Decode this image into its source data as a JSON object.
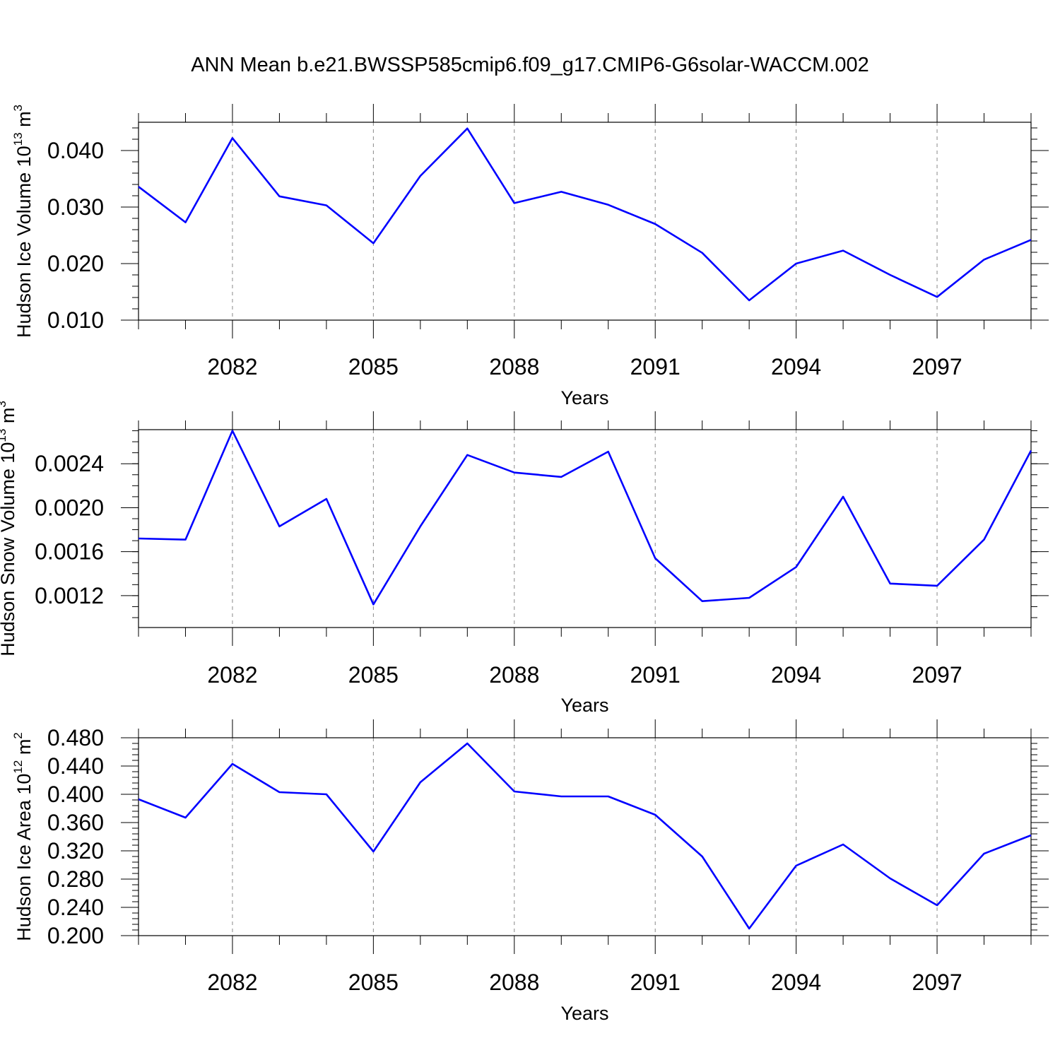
{
  "figure": {
    "title": "ANN Mean b.e21.BWSSP585cmip6.f09_g17.CMIP6-G6solar-WACCM.002"
  },
  "chart_data": [
    {
      "type": "line",
      "title": "",
      "ylabel_main": "Hudson Ice Volume 10",
      "ylabel_exp": "13",
      "ylabel_unit": " m",
      "ylabel_unit_exp": "3",
      "xlabel": "Years",
      "x": [
        2080,
        2081,
        2082,
        2083,
        2084,
        2085,
        2086,
        2087,
        2088,
        2089,
        2090,
        2091,
        2092,
        2093,
        2094,
        2095,
        2096,
        2097,
        2098,
        2099
      ],
      "series": [
        {
          "color": "#0000ff",
          "values": [
            0.0336,
            0.0273,
            0.0422,
            0.0319,
            0.0303,
            0.0236,
            0.0355,
            0.0439,
            0.0307,
            0.0327,
            0.0304,
            0.027,
            0.0219,
            0.0135,
            0.02,
            0.0223,
            0.018,
            0.0141,
            0.0207,
            0.0242
          ]
        }
      ],
      "xlim": [
        2080,
        2099
      ],
      "ylim": [
        0.01,
        0.045
      ],
      "xticks": [
        "2082",
        "2085",
        "2088",
        "2091",
        "2094",
        "2097"
      ],
      "xtick_values": [
        2082,
        2085,
        2088,
        2091,
        2094,
        2097
      ],
      "yticks": [
        "0.010",
        "0.020",
        "0.030",
        "0.040"
      ],
      "ytick_values": [
        0.01,
        0.02,
        0.03,
        0.04
      ],
      "y_minor_step": 0.002,
      "grid": "vertical dashed at major x ticks"
    },
    {
      "type": "line",
      "title": "",
      "ylabel_main": "Hudson Snow Volume 10",
      "ylabel_exp": "13",
      "ylabel_unit": " m",
      "ylabel_unit_exp": "3",
      "xlabel": "Years",
      "x": [
        2080,
        2081,
        2082,
        2083,
        2084,
        2085,
        2086,
        2087,
        2088,
        2089,
        2090,
        2091,
        2092,
        2093,
        2094,
        2095,
        2096,
        2097,
        2098,
        2099
      ],
      "series": [
        {
          "color": "#0000ff",
          "values": [
            0.00172,
            0.00171,
            0.0027,
            0.00183,
            0.00208,
            0.00112,
            0.00183,
            0.00248,
            0.00232,
            0.00228,
            0.00251,
            0.00154,
            0.00115,
            0.00118,
            0.00146,
            0.0021,
            0.00131,
            0.00129,
            0.00171,
            0.00252
          ]
        }
      ],
      "xlim": [
        2080,
        2099
      ],
      "ylim": [
        0.00091,
        0.00271
      ],
      "xticks": [
        "2082",
        "2085",
        "2088",
        "2091",
        "2094",
        "2097"
      ],
      "xtick_values": [
        2082,
        2085,
        2088,
        2091,
        2094,
        2097
      ],
      "yticks": [
        "0.0012",
        "0.0016",
        "0.0020",
        "0.0024"
      ],
      "ytick_values": [
        0.0012,
        0.0016,
        0.002,
        0.0024
      ],
      "y_minor_step": 0.0001,
      "grid": "vertical dashed at major x ticks"
    },
    {
      "type": "line",
      "title": "",
      "ylabel_main": "Hudson Ice Area 10",
      "ylabel_exp": "12",
      "ylabel_unit": " m",
      "ylabel_unit_exp": "2",
      "xlabel": "Years",
      "x": [
        2080,
        2081,
        2082,
        2083,
        2084,
        2085,
        2086,
        2087,
        2088,
        2089,
        2090,
        2091,
        2092,
        2093,
        2094,
        2095,
        2096,
        2097,
        2098,
        2099
      ],
      "series": [
        {
          "color": "#0000ff",
          "values": [
            0.393,
            0.367,
            0.443,
            0.403,
            0.4,
            0.319,
            0.417,
            0.472,
            0.404,
            0.397,
            0.397,
            0.371,
            0.312,
            0.21,
            0.299,
            0.329,
            0.281,
            0.243,
            0.316,
            0.342
          ]
        }
      ],
      "xlim": [
        2080,
        2099
      ],
      "ylim": [
        0.2,
        0.48
      ],
      "xticks": [
        "2082",
        "2085",
        "2088",
        "2091",
        "2094",
        "2097"
      ],
      "xtick_values": [
        2082,
        2085,
        2088,
        2091,
        2094,
        2097
      ],
      "yticks": [
        "0.200",
        "0.240",
        "0.280",
        "0.320",
        "0.360",
        "0.400",
        "0.440",
        "0.480"
      ],
      "ytick_values": [
        0.2,
        0.24,
        0.28,
        0.32,
        0.36,
        0.4,
        0.44,
        0.48
      ],
      "y_minor_step": 0.008,
      "grid": "vertical dashed at major x ticks"
    }
  ]
}
